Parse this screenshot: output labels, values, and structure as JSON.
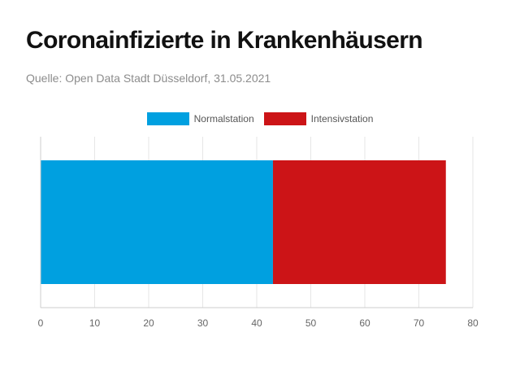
{
  "header": {
    "title": "Coronainfizierte in Krankenhäusern",
    "source": "Quelle: Open Data Stadt Düsseldorf, 31.05.2021"
  },
  "chart_data": {
    "type": "bar",
    "orientation": "horizontal",
    "stacked": true,
    "categories": [
      ""
    ],
    "series": [
      {
        "name": "Normalstation",
        "values": [
          43
        ],
        "color": "#00a0e0"
      },
      {
        "name": "Intensivstation",
        "values": [
          32
        ],
        "color": "#cc1417"
      }
    ],
    "xlim": [
      0,
      80
    ],
    "x_ticks": [
      0,
      10,
      20,
      30,
      40,
      50,
      60,
      70,
      80
    ],
    "grid": true,
    "legend_position": "top-center"
  }
}
